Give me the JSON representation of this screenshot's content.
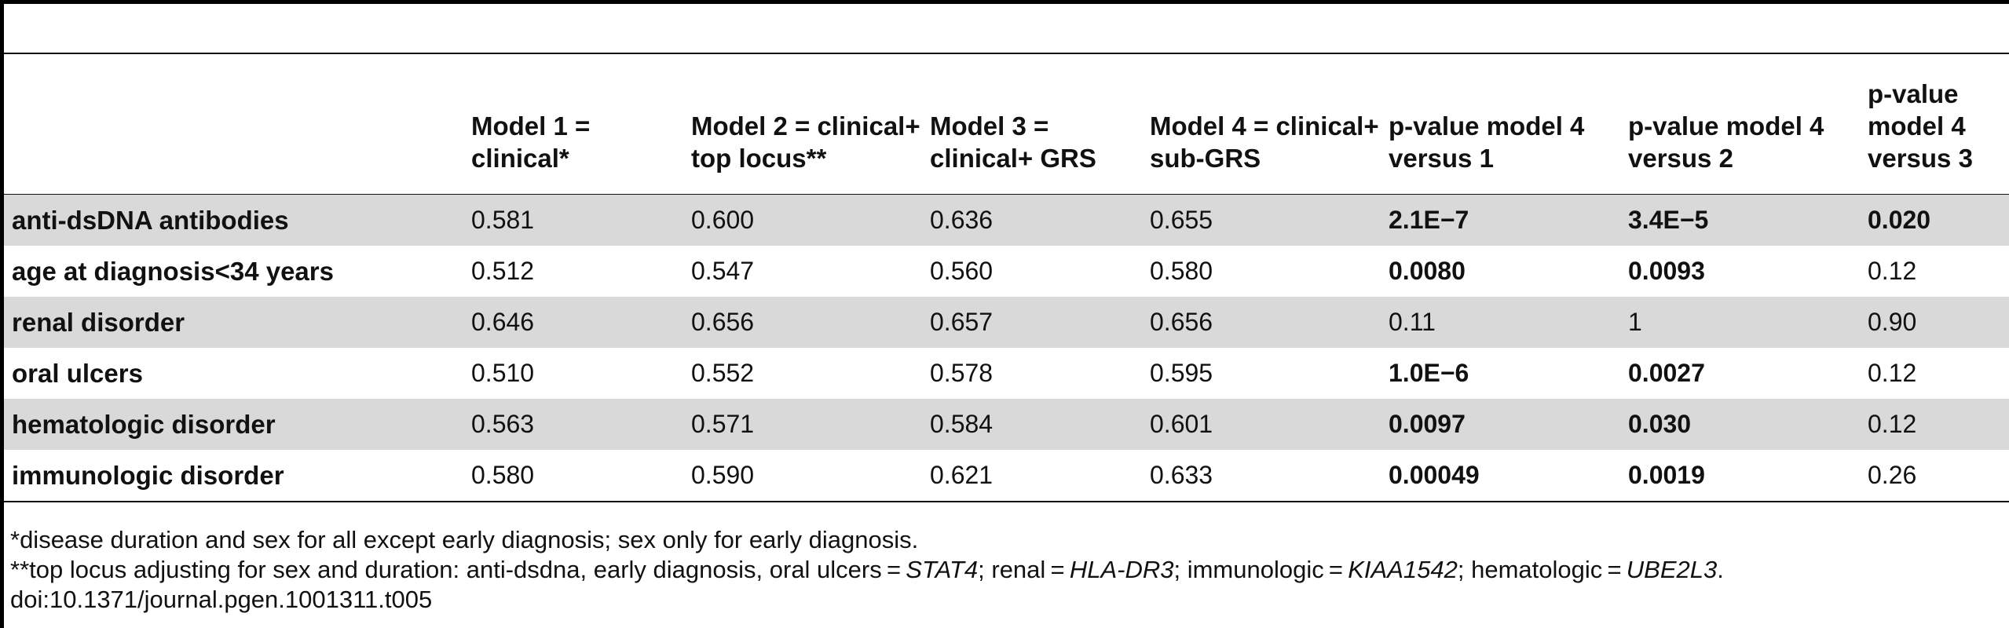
{
  "headers": [
    "",
    "Model 1 = clinical*",
    "Model 2 = clinical+ top locus**",
    "Model 3 = clinical+ GRS",
    "Model 4 = clinical+ sub-GRS",
    "p-value model 4 versus 1",
    "p-value model 4 versus 2",
    "p-value model 4 versus 3"
  ],
  "rows": [
    {
      "label": "anti-dsDNA antibodies",
      "values": [
        "0.581",
        "0.600",
        "0.636",
        "0.655",
        "2.1E−7",
        "3.4E−5",
        "0.020"
      ],
      "bold": [
        false,
        false,
        false,
        false,
        true,
        true,
        true
      ]
    },
    {
      "label": "age at diagnosis<34 years",
      "values": [
        "0.512",
        "0.547",
        "0.560",
        "0.580",
        "0.0080",
        "0.0093",
        "0.12"
      ],
      "bold": [
        false,
        false,
        false,
        false,
        true,
        true,
        false
      ]
    },
    {
      "label": "renal disorder",
      "values": [
        "0.646",
        "0.656",
        "0.657",
        "0.656",
        "0.11",
        "1",
        "0.90"
      ],
      "bold": [
        false,
        false,
        false,
        false,
        false,
        false,
        false
      ]
    },
    {
      "label": "oral ulcers",
      "values": [
        "0.510",
        "0.552",
        "0.578",
        "0.595",
        "1.0E−6",
        "0.0027",
        "0.12"
      ],
      "bold": [
        false,
        false,
        false,
        false,
        true,
        true,
        false
      ]
    },
    {
      "label": "hematologic disorder",
      "values": [
        "0.563",
        "0.571",
        "0.584",
        "0.601",
        "0.0097",
        "0.030",
        "0.12"
      ],
      "bold": [
        false,
        false,
        false,
        false,
        true,
        true,
        false
      ]
    },
    {
      "label": "immunologic disorder",
      "values": [
        "0.580",
        "0.590",
        "0.621",
        "0.633",
        "0.00049",
        "0.0019",
        "0.26"
      ],
      "bold": [
        false,
        false,
        false,
        false,
        true,
        true,
        false
      ]
    }
  ],
  "footnotes": {
    "note1": "*disease duration and sex for all except early diagnosis; sex only for early diagnosis.",
    "note2_prefix": "**top locus adjusting for sex and duration: anti-dsdna, early diagnosis, oral ulcers = ",
    "gene1": "STAT4",
    "sep1": "; renal = ",
    "gene2": "HLA-DR3",
    "sep2": "; immunologic = ",
    "gene3": "KIAA1542",
    "sep3": "; hematologic = ",
    "gene4": "UBE2L3",
    "note2_end": ".",
    "doi": "doi:10.1371/journal.pgen.1001311.t005"
  }
}
